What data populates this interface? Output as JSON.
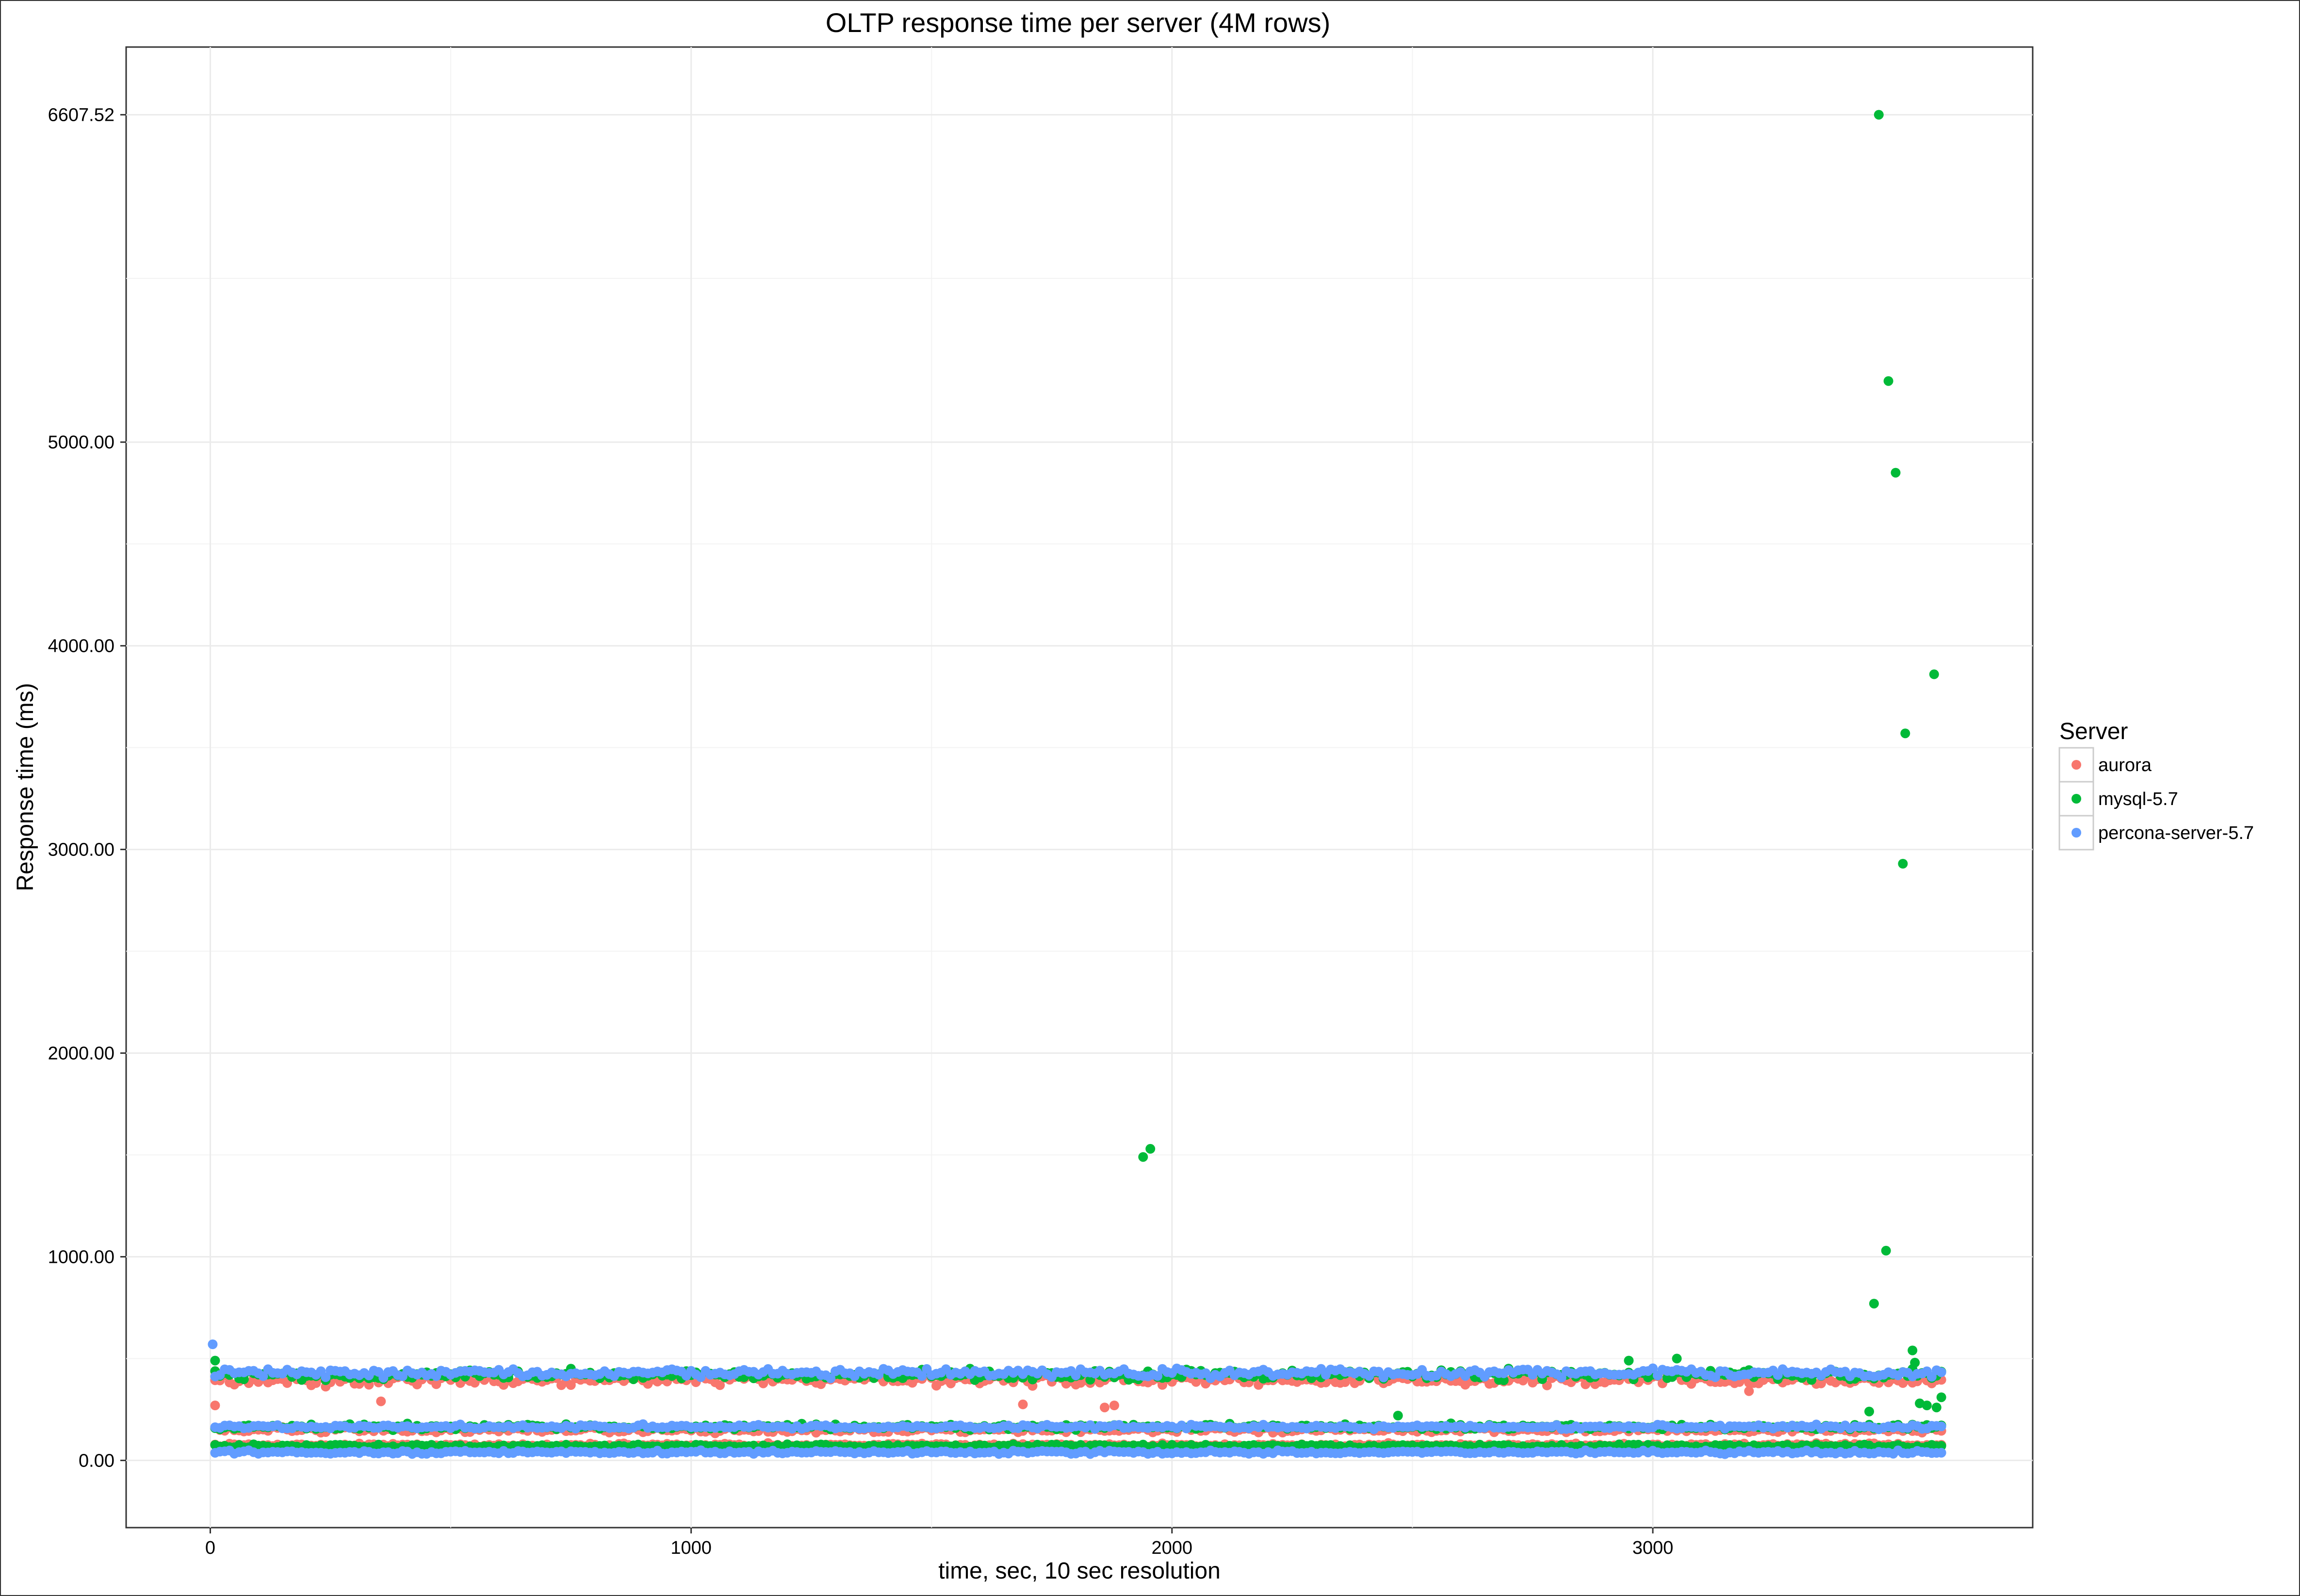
{
  "chart_data": {
    "type": "scatter",
    "title": "OLTP response time per server (4M rows)",
    "xlabel": "time, sec, 10 sec resolution",
    "ylabel": "Response time (ms)",
    "xlim": [
      -175,
      3790
    ],
    "ylim": [
      -330,
      6940
    ],
    "x_ticks": [
      {
        "value": 0,
        "label": "0"
      },
      {
        "value": 1000,
        "label": "1000"
      },
      {
        "value": 2000,
        "label": "2000"
      },
      {
        "value": 3000,
        "label": "3000"
      }
    ],
    "y_ticks": [
      {
        "value": 0,
        "label": "0.00"
      },
      {
        "value": 1000,
        "label": "1000.00"
      },
      {
        "value": 2000,
        "label": "2000.00"
      },
      {
        "value": 3000,
        "label": "3000.00"
      },
      {
        "value": 4000,
        "label": "4000.00"
      },
      {
        "value": 5000,
        "label": "5000.00"
      },
      {
        "value": 6607.52,
        "label": "6607.52"
      }
    ],
    "grid": true,
    "legend": {
      "title": "Server",
      "position": "right"
    },
    "sampling": {
      "x_start": 10,
      "x_end": 3600,
      "step": 10
    },
    "series": [
      {
        "name": "aurora",
        "color": "#F8766D",
        "bands": [
          {
            "center": 395,
            "spread": 35
          },
          {
            "center": 150,
            "spread": 20
          },
          {
            "center": 75,
            "spread": 12
          }
        ],
        "outliers": [
          {
            "x": 10,
            "y": 270
          },
          {
            "x": 355,
            "y": 290
          },
          {
            "x": 1690,
            "y": 275
          },
          {
            "x": 1860,
            "y": 260
          },
          {
            "x": 1880,
            "y": 270
          },
          {
            "x": 3200,
            "y": 340
          }
        ]
      },
      {
        "name": "mysql-5.7",
        "color": "#00BA38",
        "bands": [
          {
            "center": 420,
            "spread": 35
          },
          {
            "center": 165,
            "spread": 20
          },
          {
            "center": 70,
            "spread": 12
          }
        ],
        "outliers": [
          {
            "x": 10,
            "y": 490
          },
          {
            "x": 1940,
            "y": 1490
          },
          {
            "x": 1955,
            "y": 1530
          },
          {
            "x": 2470,
            "y": 220
          },
          {
            "x": 2950,
            "y": 490
          },
          {
            "x": 3050,
            "y": 500
          },
          {
            "x": 3450,
            "y": 240
          },
          {
            "x": 3460,
            "y": 770
          },
          {
            "x": 3470,
            "y": 6607.52
          },
          {
            "x": 3485,
            "y": 1030
          },
          {
            "x": 3490,
            "y": 5300
          },
          {
            "x": 3505,
            "y": 4850
          },
          {
            "x": 3520,
            "y": 2930
          },
          {
            "x": 3525,
            "y": 3570
          },
          {
            "x": 3540,
            "y": 540
          },
          {
            "x": 3545,
            "y": 480
          },
          {
            "x": 3555,
            "y": 280
          },
          {
            "x": 3570,
            "y": 270
          },
          {
            "x": 3585,
            "y": 3860
          },
          {
            "x": 3590,
            "y": 260
          },
          {
            "x": 3600,
            "y": 310
          }
        ]
      },
      {
        "name": "percona-server-5.7",
        "color": "#619CFF",
        "bands": [
          {
            "center": 430,
            "spread": 30
          },
          {
            "center": 165,
            "spread": 15
          },
          {
            "center": 40,
            "spread": 12
          }
        ],
        "outliers": [
          {
            "x": 5,
            "y": 570
          }
        ]
      }
    ]
  }
}
